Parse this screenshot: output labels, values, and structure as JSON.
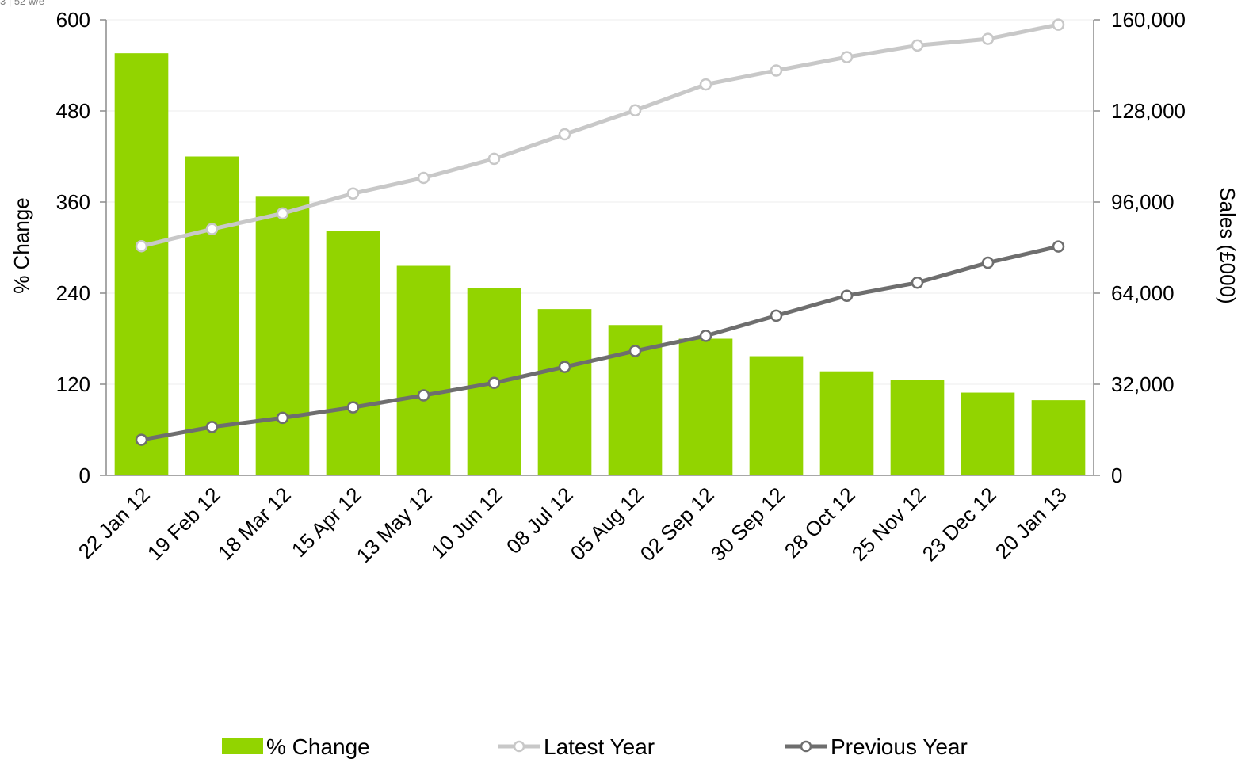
{
  "corner_label": "3 | 52 w/e",
  "colors": {
    "bar": "#92d400",
    "latest_line": "#c8c8c8",
    "previous_line": "#6e6e6e",
    "axis": "#8c8c8c",
    "grid": "#ececec"
  },
  "chart_data": {
    "type": "bar",
    "categories": [
      "22 Jan 12",
      "19 Feb 12",
      "18 Mar 12",
      "15 Apr 12",
      "13 May 12",
      "10 Jun 12",
      "08 Jul 12",
      "05 Aug 12",
      "02 Sep 12",
      "30 Sep 12",
      "28 Oct 12",
      "25 Nov 12",
      "23 Dec 12",
      "20 Jan 13"
    ],
    "series": [
      {
        "name": "% Change",
        "type": "bar",
        "axis": "left",
        "values": [
          556,
          420,
          367,
          322,
          276,
          247,
          219,
          198,
          180,
          157,
          137,
          126,
          109,
          99
        ]
      },
      {
        "name": "Latest Year",
        "type": "line",
        "axis": "right",
        "values": [
          80500,
          86500,
          92000,
          99000,
          104500,
          111200,
          119800,
          128200,
          137300,
          142200,
          146900,
          151000,
          153300,
          158300
        ]
      },
      {
        "name": "Previous Year",
        "type": "line",
        "axis": "right",
        "values": [
          12500,
          17000,
          20200,
          23900,
          28100,
          32500,
          38100,
          43700,
          49000,
          56100,
          63100,
          67700,
          74700,
          80400
        ]
      }
    ],
    "ylabel": "% Change",
    "y2label": "Sales (£000)",
    "ylim": [
      0,
      600
    ],
    "y2lim": [
      0,
      160000
    ],
    "yticks": [
      "0",
      "120",
      "240",
      "360",
      "480",
      "600"
    ],
    "y2ticks": [
      "0",
      "32,000",
      "64,000",
      "96,000",
      "128,000",
      "160,000"
    ],
    "grid": true,
    "legend_position": "bottom"
  }
}
